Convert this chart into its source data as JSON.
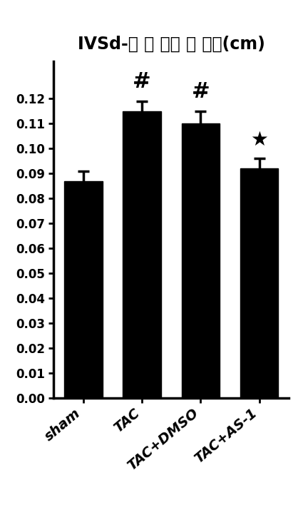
{
  "title": "IVSd-室 间 隔舒 张 厚度(cm)",
  "categories": [
    "sham",
    "TAC",
    "TAC+DMSO",
    "TAC+AS-1"
  ],
  "values": [
    0.087,
    0.115,
    0.11,
    0.092
  ],
  "errors": [
    0.004,
    0.004,
    0.005,
    0.004
  ],
  "bar_color": "#000000",
  "background_color": "#ffffff",
  "ylim_min": 0.0,
  "ylim_max": 0.135,
  "yticks": [
    0.0,
    0.01,
    0.02,
    0.03,
    0.04,
    0.05,
    0.06,
    0.07,
    0.08,
    0.09,
    0.1,
    0.11,
    0.12
  ],
  "annotations": [
    {
      "bar_index": 1,
      "text": "#",
      "fontsize": 22
    },
    {
      "bar_index": 2,
      "text": "#",
      "fontsize": 22
    },
    {
      "bar_index": 3,
      "text": "★",
      "fontsize": 20
    }
  ],
  "xtick_fontsize": 14,
  "ytick_fontsize": 12,
  "title_fontsize": 17,
  "bar_width": 0.65,
  "error_capsize": 6,
  "error_linewidth": 2.5,
  "spine_linewidth": 2.5
}
